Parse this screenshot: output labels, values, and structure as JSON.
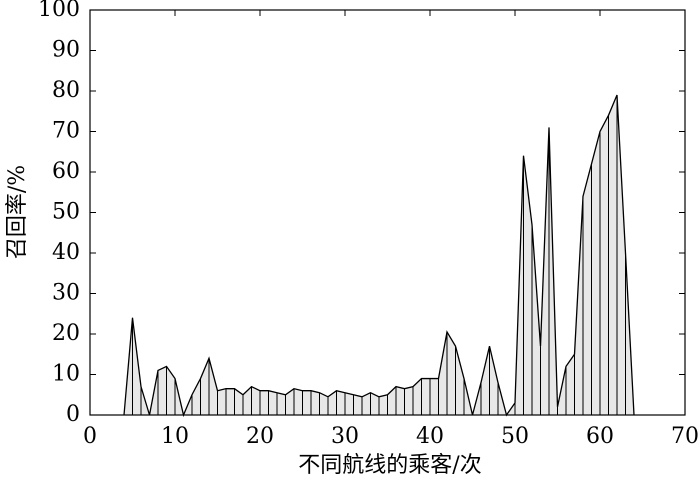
{
  "chart_data": {
    "type": "area",
    "x_label": "不同航线的乘客/次",
    "y_label": "召回率/%",
    "x": [
      4,
      5,
      6,
      7,
      8,
      9,
      10,
      11,
      12,
      13,
      14,
      15,
      16,
      17,
      18,
      19,
      20,
      21,
      22,
      23,
      24,
      25,
      26,
      27,
      28,
      29,
      30,
      31,
      32,
      33,
      34,
      35,
      36,
      37,
      38,
      39,
      40,
      41,
      42,
      43,
      44,
      45,
      46,
      47,
      48,
      49,
      50,
      51,
      52,
      53,
      54,
      55,
      56,
      57,
      58,
      59,
      60,
      61,
      62,
      63,
      64
    ],
    "values": [
      0,
      24,
      7,
      0,
      11,
      12,
      9,
      0,
      5,
      9,
      14,
      6,
      6.5,
      6.5,
      5,
      7,
      6,
      6,
      5.5,
      5,
      6.5,
      6,
      6,
      5.5,
      4.5,
      6,
      5.5,
      5,
      4.5,
      5.5,
      4.5,
      5,
      7,
      6.5,
      7,
      9,
      9,
      9,
      20.5,
      17,
      9,
      0,
      8,
      17,
      8,
      0,
      3,
      64,
      47,
      17,
      71,
      2,
      12,
      15,
      54,
      62,
      70,
      74,
      79,
      40,
      0
    ],
    "color": "#e8e8e8",
    "xlim": [
      0,
      70
    ],
    "xticks": [
      0,
      10,
      20,
      30,
      40,
      50,
      60,
      70
    ],
    "ylim": [
      0,
      100
    ],
    "yticks": [
      0,
      10,
      20,
      30,
      40,
      50,
      60,
      70,
      80,
      90,
      100
    ]
  }
}
